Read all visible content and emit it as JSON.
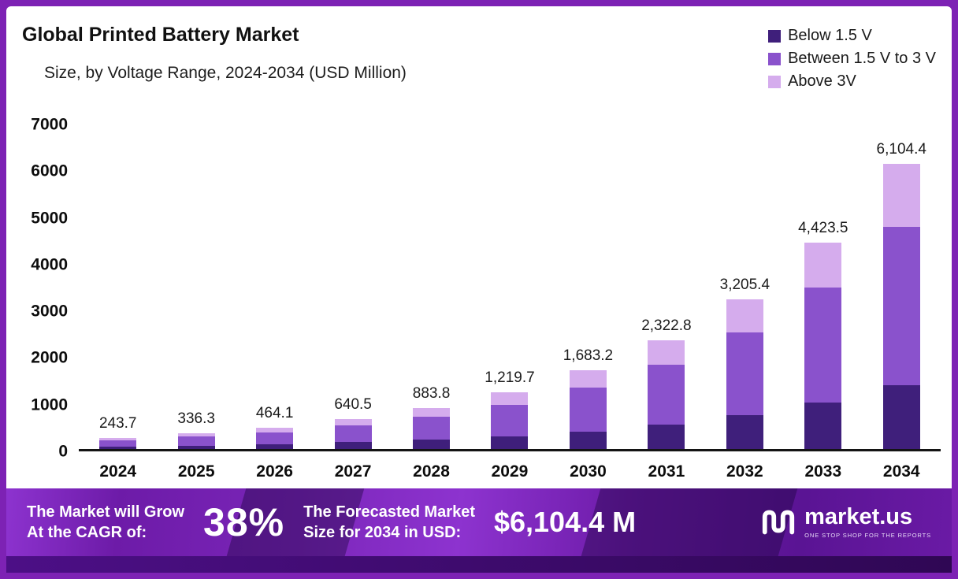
{
  "header": {
    "title": "Global Printed Battery Market",
    "subtitle": "Size, by Voltage Range, 2024-2034 (USD Million)"
  },
  "legend": [
    {
      "label": "Below 1.5 V",
      "color": "#3f1f7b"
    },
    {
      "label": "Between 1.5 V to 3 V",
      "color": "#8a52cc"
    },
    {
      "label": "Above 3V",
      "color": "#d5aced"
    }
  ],
  "chart_data": {
    "type": "bar",
    "stacked": true,
    "title": "Global Printed Battery Market Size, by Voltage Range, 2024-2034 (USD Million)",
    "unit": "USD Million",
    "categories": [
      "2024",
      "2025",
      "2026",
      "2027",
      "2028",
      "2029",
      "2030",
      "2031",
      "2032",
      "2033",
      "2034"
    ],
    "series": [
      {
        "name": "Below 1.5 V",
        "color": "#3f1f7b",
        "values": [
          55,
          76,
          104,
          144,
          199,
          274,
          379,
          523,
          721,
          995,
          1373
        ]
      },
      {
        "name": "Between 1.5 V to 3 V",
        "color": "#8a52cc",
        "values": [
          135,
          186,
          258,
          356,
          490,
          677,
          934,
          1289,
          1779,
          2455,
          3388
        ]
      },
      {
        "name": "Above 3V",
        "color": "#d5aced",
        "values": [
          53.7,
          74.3,
          102.1,
          140.5,
          194.8,
          268.7,
          370.2,
          510.8,
          705.4,
          973.5,
          1343.4
        ]
      }
    ],
    "totals": [
      "243.7",
      "336.3",
      "464.1",
      "640.5",
      "883.8",
      "1,219.7",
      "1,683.2",
      "2,322.8",
      "3,205.4",
      "4,423.5",
      "6,104.4"
    ],
    "ylim": [
      0,
      7000
    ],
    "yticks": [
      0,
      1000,
      2000,
      3000,
      4000,
      5000,
      6000,
      7000
    ],
    "grid": false,
    "legend_position": "top-right"
  },
  "footer": {
    "cagr_line1": "The Market will Grow",
    "cagr_line2": "At the CAGR of:",
    "cagr_value": "38%",
    "forecast_line1": "The Forecasted Market",
    "forecast_line2": "Size for 2034 in USD:",
    "forecast_value": "$6,104.4 M",
    "brand": "market.us",
    "tagline": "ONE STOP SHOP FOR THE REPORTS"
  }
}
